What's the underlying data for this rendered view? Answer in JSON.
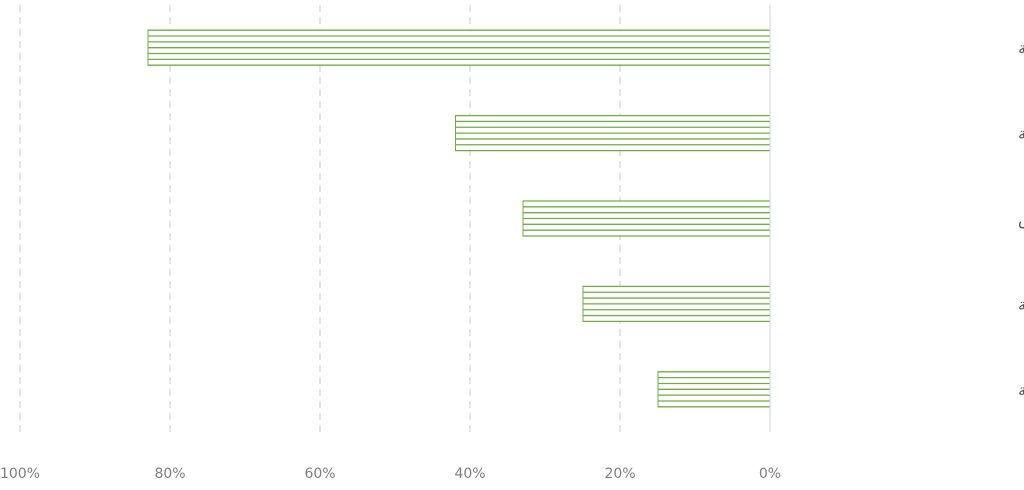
{
  "chart_data": {
    "type": "bar",
    "orientation": "horizontal",
    "x_axis_direction": "reversed",
    "categories": [
      "زيادة أوقات الاستجابة التشغيلية",
      "تحسين الموثوقية",
      "تقليل وقت الفحص",
      "تخفيض تكاليف الصيانة",
      "تقليل استهلاك الطاقة"
    ],
    "values": [
      83,
      42,
      33,
      25,
      15
    ],
    "xlim": [
      0,
      100
    ],
    "xticks": [
      "0%",
      "20%",
      "40%",
      "60%",
      "80%",
      "100%"
    ],
    "grid": true,
    "legend": "none",
    "bar_color": "#70ad47",
    "bar_fill": "horizontal-stripes"
  }
}
